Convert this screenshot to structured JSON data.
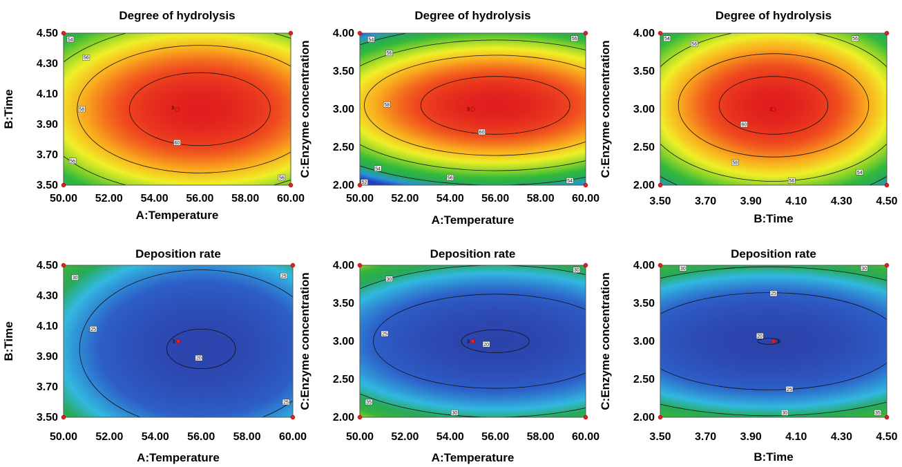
{
  "chart_data": [
    {
      "type": "contour",
      "title": "Degree of hydrolysis",
      "xlabel": "A:Temperature",
      "ylabel": "B:Time",
      "xlim": [
        50,
        60
      ],
      "ylim": [
        3.5,
        4.5
      ],
      "xticks": [
        "50.00",
        "52.00",
        "54.00",
        "56.00",
        "58.00",
        "60.00"
      ],
      "yticks": [
        "3.50",
        "3.70",
        "3.90",
        "4.10",
        "4.30",
        "4.50"
      ],
      "center": [
        56.0,
        4.0
      ],
      "peak": 61.5,
      "range": [
        52,
        61.5
      ],
      "colormap": "high-red",
      "contours": [
        {
          "level": 60,
          "rx": 3.1,
          "ry": 0.24
        },
        {
          "level": 58,
          "rx": 5.4,
          "ry": 0.42
        },
        {
          "level": 56,
          "rx": 7.2,
          "ry": 0.56
        },
        {
          "level": 54,
          "rx": 8.9,
          "ry": 0.69
        }
      ],
      "contour_labels": [
        {
          "text": "54",
          "x": 50.3,
          "y": 4.46
        },
        {
          "text": "56",
          "x": 51.0,
          "y": 4.34
        },
        {
          "text": "58",
          "x": 50.8,
          "y": 4.0
        },
        {
          "text": "56",
          "x": 50.4,
          "y": 3.66
        },
        {
          "text": "60",
          "x": 55.0,
          "y": 3.78
        },
        {
          "text": "56",
          "x": 59.6,
          "y": 3.55
        },
        {
          "text": "3",
          "x": 54.8,
          "y": 4.01
        }
      ],
      "design_points": [
        [
          50,
          3.5
        ],
        [
          50,
          4.5
        ],
        [
          60,
          3.5
        ],
        [
          60,
          4.5
        ],
        [
          55,
          4.0
        ]
      ]
    },
    {
      "type": "contour",
      "title": "Degree of hydrolysis",
      "xlabel": "A:Temperature",
      "ylabel": "C:Enzyme concentration",
      "xlim": [
        50,
        60
      ],
      "ylim": [
        2.0,
        4.0
      ],
      "xticks": [
        "50.00",
        "52.00",
        "54.00",
        "56.00",
        "58.00",
        "60.00"
      ],
      "yticks": [
        "2.00",
        "2.50",
        "3.00",
        "3.50",
        "4.00"
      ],
      "center": [
        56.0,
        3.05
      ],
      "peak": 61.5,
      "range": [
        52,
        61.5
      ],
      "colormap": "high-red",
      "contours": [
        {
          "level": 60,
          "rx": 3.3,
          "ry": 0.38
        },
        {
          "level": 58,
          "rx": 5.8,
          "ry": 0.66
        },
        {
          "level": 56,
          "rx": 7.5,
          "ry": 0.86
        },
        {
          "level": 54,
          "rx": 9.2,
          "ry": 1.05
        }
      ],
      "contour_labels": [
        {
          "text": "54",
          "x": 50.5,
          "y": 3.92
        },
        {
          "text": "56",
          "x": 51.3,
          "y": 3.74
        },
        {
          "text": "56",
          "x": 59.5,
          "y": 3.93
        },
        {
          "text": "58",
          "x": 51.2,
          "y": 3.06
        },
        {
          "text": "60",
          "x": 55.4,
          "y": 2.7
        },
        {
          "text": "54",
          "x": 50.8,
          "y": 2.22
        },
        {
          "text": "52",
          "x": 50.2,
          "y": 2.04
        },
        {
          "text": "56",
          "x": 54.0,
          "y": 2.1
        },
        {
          "text": "54",
          "x": 59.3,
          "y": 2.06
        },
        {
          "text": "3",
          "x": 54.8,
          "y": 3.0
        }
      ],
      "design_points": [
        [
          50,
          2.0
        ],
        [
          50,
          4.0
        ],
        [
          60,
          2.0
        ],
        [
          60,
          4.0
        ],
        [
          55,
          3.0
        ]
      ]
    },
    {
      "type": "contour",
      "title": "Degree of hydrolysis",
      "xlabel": "B:Time",
      "ylabel": "C:Enzyme concentration",
      "xlim": [
        3.5,
        4.5
      ],
      "ylim": [
        2.0,
        4.0
      ],
      "xticks": [
        "3.50",
        "3.70",
        "3.90",
        "4.10",
        "4.30",
        "4.50"
      ],
      "yticks": [
        "2.00",
        "2.50",
        "3.00",
        "3.50",
        "4.00"
      ],
      "center": [
        4.0,
        3.05
      ],
      "peak": 61.5,
      "range": [
        52,
        61.5
      ],
      "colormap": "high-red",
      "contours": [
        {
          "level": 60,
          "rx": 0.24,
          "ry": 0.38
        },
        {
          "level": 58,
          "rx": 0.42,
          "ry": 0.68
        },
        {
          "level": 56,
          "rx": 0.58,
          "ry": 1.0
        },
        {
          "level": 54,
          "rx": 0.72,
          "ry": 1.3
        }
      ],
      "contour_labels": [
        {
          "text": "54",
          "x": 3.53,
          "y": 3.93
        },
        {
          "text": "56",
          "x": 3.65,
          "y": 3.86
        },
        {
          "text": "56",
          "x": 4.36,
          "y": 3.93
        },
        {
          "text": "60",
          "x": 3.87,
          "y": 2.8
        },
        {
          "text": "58",
          "x": 3.83,
          "y": 2.3
        },
        {
          "text": "56",
          "x": 4.08,
          "y": 2.06
        },
        {
          "text": "54",
          "x": 4.38,
          "y": 2.17
        },
        {
          "text": "3",
          "x": 3.99,
          "y": 3.0
        }
      ],
      "design_points": [
        [
          3.5,
          2.0
        ],
        [
          3.5,
          4.0
        ],
        [
          4.5,
          2.0
        ],
        [
          4.5,
          4.0
        ],
        [
          4.0,
          3.0
        ]
      ]
    },
    {
      "type": "contour",
      "title": "Deposition rate",
      "xlabel": "A:Temperature",
      "ylabel": "B:Time",
      "xlim": [
        50,
        60
      ],
      "ylim": [
        3.5,
        4.5
      ],
      "xticks": [
        "50.00",
        "52.00",
        "54.00",
        "56.00",
        "58.00",
        "60.00"
      ],
      "yticks": [
        "3.50",
        "3.70",
        "3.90",
        "4.10",
        "4.30",
        "4.50"
      ],
      "center": [
        56.0,
        3.95
      ],
      "peak": 19.0,
      "range": [
        18,
        33
      ],
      "colormap": "low-blue",
      "contours": [
        {
          "level": 20,
          "rx": 1.5,
          "ry": 0.13
        },
        {
          "level": 25,
          "rx": 5.3,
          "ry": 0.52
        },
        {
          "level": 30,
          "rx": 8.2,
          "ry": 0.82
        }
      ],
      "contour_labels": [
        {
          "text": "30",
          "x": 50.5,
          "y": 4.42
        },
        {
          "text": "25",
          "x": 59.6,
          "y": 4.43
        },
        {
          "text": "25",
          "x": 51.3,
          "y": 4.08
        },
        {
          "text": "20",
          "x": 55.9,
          "y": 3.89
        },
        {
          "text": "25",
          "x": 59.7,
          "y": 3.6
        },
        {
          "text": "3",
          "x": 54.8,
          "y": 4.0
        }
      ],
      "design_points": [
        [
          50,
          3.5
        ],
        [
          50,
          4.5
        ],
        [
          60,
          3.5
        ],
        [
          60,
          4.5
        ],
        [
          55,
          4.0
        ]
      ]
    },
    {
      "type": "contour",
      "title": "Deposition rate",
      "xlabel": "A:Temperature",
      "ylabel": "C:Enzyme concentration",
      "xlim": [
        50,
        60
      ],
      "ylim": [
        2.0,
        4.0
      ],
      "xticks": [
        "50.00",
        "52.00",
        "54.00",
        "56.00",
        "58.00",
        "60.00"
      ],
      "yticks": [
        "2.00",
        "2.50",
        "3.00",
        "3.50",
        "4.00"
      ],
      "center": [
        56.0,
        3.0
      ],
      "peak": 19.0,
      "range": [
        18,
        36
      ],
      "colormap": "low-blue",
      "contours": [
        {
          "level": 20,
          "rx": 1.5,
          "ry": 0.15
        },
        {
          "level": 25,
          "rx": 5.4,
          "ry": 0.62
        },
        {
          "level": 30,
          "rx": 8.3,
          "ry": 1.0
        },
        {
          "level": 35,
          "rx": 10.8,
          "ry": 1.3
        }
      ],
      "contour_labels": [
        {
          "text": "30",
          "x": 51.3,
          "y": 3.82
        },
        {
          "text": "30",
          "x": 59.6,
          "y": 3.94
        },
        {
          "text": "25",
          "x": 51.1,
          "y": 3.1
        },
        {
          "text": "20",
          "x": 55.6,
          "y": 2.96
        },
        {
          "text": "35",
          "x": 50.4,
          "y": 2.2
        },
        {
          "text": "30",
          "x": 54.2,
          "y": 2.06
        },
        {
          "text": "3",
          "x": 54.8,
          "y": 3.0
        }
      ],
      "design_points": [
        [
          50,
          2.0
        ],
        [
          50,
          4.0
        ],
        [
          60,
          2.0
        ],
        [
          60,
          4.0
        ],
        [
          55,
          3.0
        ]
      ]
    },
    {
      "type": "contour",
      "title": "Deposition rate",
      "xlabel": "B:Time",
      "ylabel": "C:Enzyme concentration",
      "xlim": [
        3.5,
        4.5
      ],
      "ylim": [
        2.0,
        4.0
      ],
      "xticks": [
        "3.50",
        "3.70",
        "3.90",
        "4.10",
        "4.30",
        "4.50"
      ],
      "yticks": [
        "2.00",
        "2.50",
        "3.00",
        "3.50",
        "4.00"
      ],
      "center": [
        3.98,
        3.0
      ],
      "peak": 19.0,
      "range": [
        18,
        36
      ],
      "colormap": "low-blue",
      "contours": [
        {
          "level": 20,
          "rx": 0.05,
          "ry": 0.04
        },
        {
          "level": 25,
          "rx": 0.58,
          "ry": 0.64
        },
        {
          "level": 30,
          "rx": 0.9,
          "ry": 0.98
        },
        {
          "level": 35,
          "rx": 1.12,
          "ry": 1.25
        }
      ],
      "contour_labels": [
        {
          "text": "30",
          "x": 3.6,
          "y": 3.96
        },
        {
          "text": "30",
          "x": 4.4,
          "y": 3.96
        },
        {
          "text": "25",
          "x": 4.0,
          "y": 3.63
        },
        {
          "text": "20",
          "x": 3.94,
          "y": 3.07
        },
        {
          "text": "3",
          "x": 4.02,
          "y": 3.0
        },
        {
          "text": "25",
          "x": 4.07,
          "y": 2.37
        },
        {
          "text": "30",
          "x": 4.05,
          "y": 2.06
        },
        {
          "text": "35",
          "x": 4.46,
          "y": 2.06
        }
      ],
      "design_points": [
        [
          3.5,
          2.0
        ],
        [
          3.5,
          4.0
        ],
        [
          4.5,
          2.0
        ],
        [
          4.5,
          4.0
        ],
        [
          4.0,
          3.0
        ]
      ]
    }
  ]
}
